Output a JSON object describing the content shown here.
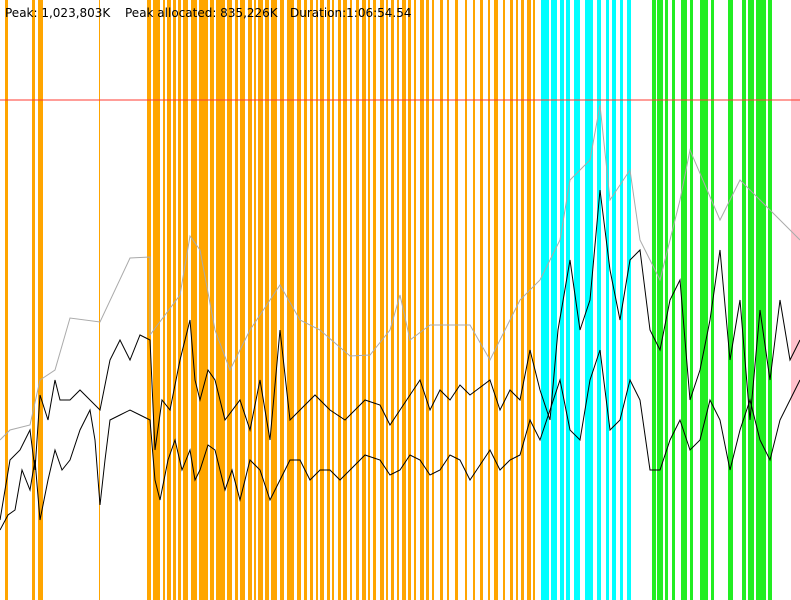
{
  "header": {
    "peak": "Peak: 1,023,803K",
    "peak_allocated": "Peak allocated: 835,226K",
    "duration": "Duration:1:06:54.54"
  }
}
